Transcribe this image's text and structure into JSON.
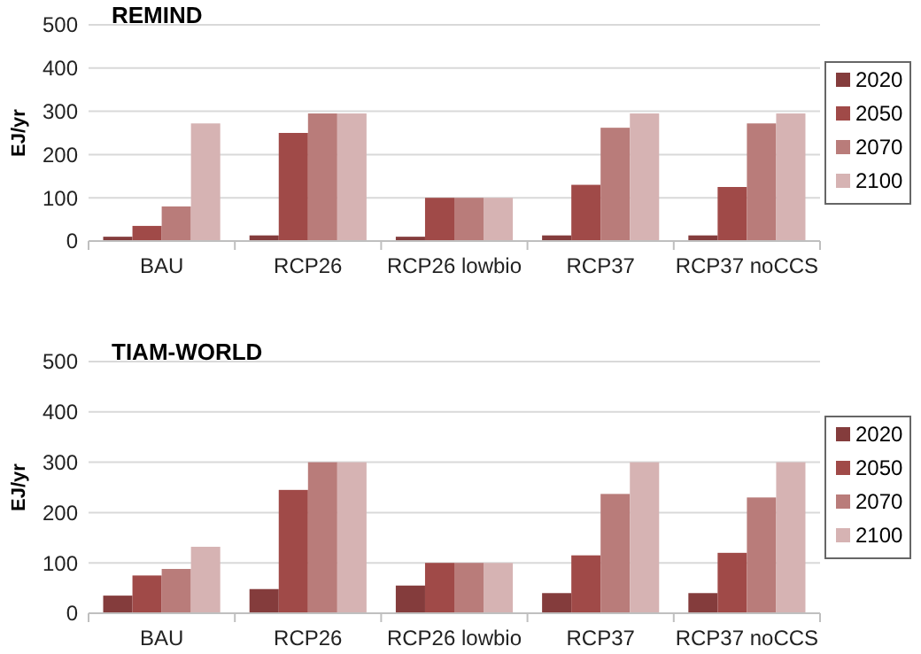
{
  "chart_data": [
    {
      "type": "bar",
      "title": "REMIND",
      "ylabel": "EJ/yr",
      "categories": [
        "BAU",
        "RCP26",
        "RCP26 lowbio",
        "RCP37",
        "RCP37 noCCS"
      ],
      "ylim": [
        0,
        500
      ],
      "yticks": [
        0,
        100,
        200,
        300,
        400,
        500
      ],
      "grid": "y",
      "legend": "right",
      "series": [
        {
          "name": "2020",
          "color": "#843c3c",
          "values": [
            10,
            13,
            10,
            13,
            13
          ]
        },
        {
          "name": "2050",
          "color": "#a04a48",
          "values": [
            35,
            250,
            100,
            130,
            125
          ]
        },
        {
          "name": "2070",
          "color": "#b97c7a",
          "values": [
            80,
            295,
            100,
            262,
            272
          ]
        },
        {
          "name": "2100",
          "color": "#d6b3b3",
          "values": [
            272,
            295,
            100,
            295,
            295
          ]
        }
      ]
    },
    {
      "type": "bar",
      "title": "TIAM-WORLD",
      "ylabel": "EJ/yr",
      "categories": [
        "BAU",
        "RCP26",
        "RCP26 lowbio",
        "RCP37",
        "RCP37 noCCS"
      ],
      "ylim": [
        0,
        500
      ],
      "yticks": [
        0,
        100,
        200,
        300,
        400,
        500
      ],
      "grid": "y",
      "legend": "right",
      "series": [
        {
          "name": "2020",
          "color": "#843c3c",
          "values": [
            35,
            48,
            55,
            40,
            40
          ]
        },
        {
          "name": "2050",
          "color": "#a04a48",
          "values": [
            75,
            245,
            100,
            115,
            120
          ]
        },
        {
          "name": "2070",
          "color": "#b97c7a",
          "values": [
            88,
            300,
            100,
            237,
            230
          ]
        },
        {
          "name": "2100",
          "color": "#d6b3b3",
          "values": [
            132,
            300,
            100,
            300,
            300
          ]
        }
      ]
    }
  ]
}
